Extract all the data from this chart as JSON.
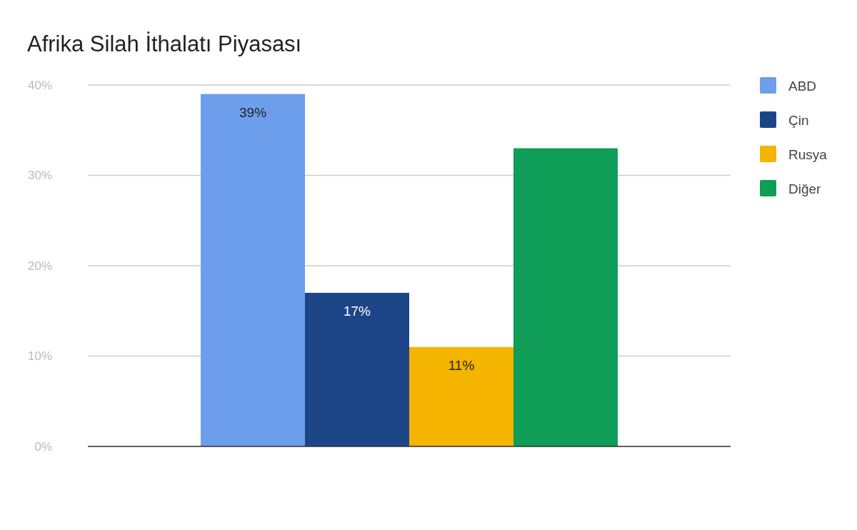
{
  "chart_data": {
    "type": "bar",
    "title": "Afrika Silah İthalatı Piyasası",
    "categories": [
      null
    ],
    "series": [
      {
        "name": "ABD",
        "color": "#6d9eeb",
        "values": [
          39
        ],
        "value_labels": [
          "39%"
        ]
      },
      {
        "name": "Çin",
        "color": "#1c4587",
        "values": [
          17
        ],
        "value_labels": [
          "17%"
        ]
      },
      {
        "name": "Rusya",
        "color": "#f4b400",
        "values": [
          11
        ],
        "value_labels": [
          "11%"
        ]
      },
      {
        "name": "Diğer",
        "color": "#0f9d58",
        "values": [
          33
        ],
        "value_labels": [
          null
        ]
      }
    ],
    "ylim": [
      0,
      40
    ],
    "yticks": [
      {
        "value": 0,
        "label": "0%"
      },
      {
        "value": 10,
        "label": "10%"
      },
      {
        "value": 20,
        "label": "20%"
      },
      {
        "value": 30,
        "label": "30%"
      },
      {
        "value": 40,
        "label": "40%"
      }
    ],
    "grid": "y",
    "legend": "right"
  }
}
